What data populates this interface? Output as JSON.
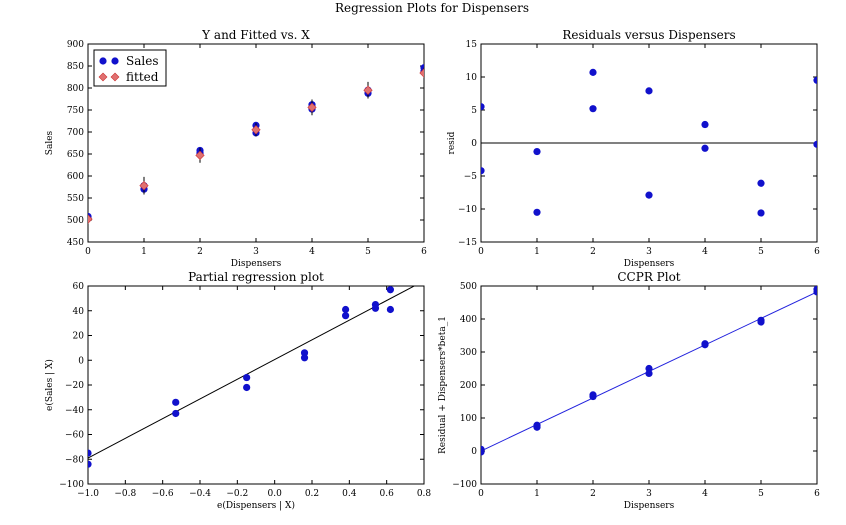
{
  "figure": {
    "suptitle": "Regression Plots for Dispensers"
  },
  "chart_data": [
    {
      "id": "yfit",
      "type": "scatter",
      "title": "Y and Fitted vs. X",
      "xlabel": "Dispensers",
      "ylabel": "Sales",
      "xlim": [
        0,
        6
      ],
      "ylim": [
        450,
        900
      ],
      "xticks": [
        "0",
        "1",
        "2",
        "3",
        "4",
        "5",
        "6"
      ],
      "yticks": [
        "450",
        "500",
        "550",
        "600",
        "650",
        "700",
        "750",
        "800",
        "850",
        "900"
      ],
      "legend": {
        "placement": "top-left",
        "entries": [
          "Sales",
          "fitted"
        ]
      },
      "colors": {
        "sales": "#1111cc",
        "fitted": "#e07070",
        "errorbar": "#000000"
      },
      "series": [
        {
          "name": "Sales",
          "marker": "circle",
          "points": [
            [
              0,
              508
            ],
            [
              0,
              504
            ],
            [
              1,
              570
            ],
            [
              1,
              578
            ],
            [
              2,
              652
            ],
            [
              2,
              658
            ],
            [
              3,
              698
            ],
            [
              3,
              715
            ],
            [
              4,
              752
            ],
            [
              4,
              762
            ],
            [
              5,
              788
            ],
            [
              5,
              795
            ],
            [
              6,
              838
            ],
            [
              6,
              846
            ]
          ]
        },
        {
          "name": "fitted",
          "marker": "diamond",
          "points": [
            [
              0,
              502
            ],
            [
              1,
              578
            ],
            [
              2,
              647
            ],
            [
              3,
              705
            ],
            [
              4,
              756
            ],
            [
              5,
              795
            ],
            [
              6,
              834
            ]
          ],
          "errorbars": [
            [
              0,
              492,
              512
            ],
            [
              1,
              558,
              598
            ],
            [
              2,
              630,
              664
            ],
            [
              3,
              690,
              720
            ],
            [
              4,
              738,
              774
            ],
            [
              5,
              776,
              814
            ],
            [
              6,
              822,
              846
            ]
          ]
        }
      ]
    },
    {
      "id": "resid",
      "type": "scatter",
      "title": "Residuals versus Dispensers",
      "xlabel": "Dispensers",
      "ylabel": "resid",
      "xlim": [
        0,
        6
      ],
      "ylim": [
        -15,
        15
      ],
      "xticks": [
        "0",
        "1",
        "2",
        "3",
        "4",
        "5",
        "6"
      ],
      "yticks": [
        "−15",
        "−10",
        "−5",
        "0",
        "5",
        "10",
        "15"
      ],
      "hline": 0,
      "colors": {
        "points": "#1111cc",
        "line": "#000000"
      },
      "series": [
        {
          "points": [
            [
              0,
              5.5
            ],
            [
              0,
              -4.2
            ],
            [
              1,
              -1.3
            ],
            [
              1,
              -10.5
            ],
            [
              2,
              10.7
            ],
            [
              2,
              5.2
            ],
            [
              3,
              7.9
            ],
            [
              3,
              -7.9
            ],
            [
              4,
              2.8
            ],
            [
              4,
              -0.8
            ],
            [
              5,
              -6.1
            ],
            [
              5,
              -10.6
            ],
            [
              6,
              9.5
            ],
            [
              6,
              -0.2
            ]
          ]
        }
      ]
    },
    {
      "id": "partial",
      "type": "scatter",
      "title": "Partial regression plot",
      "xlabel": "e(Dispensers | X)",
      "ylabel": "e(Sales | X)",
      "xlim": [
        -1.0,
        0.8
      ],
      "ylim": [
        -100,
        60
      ],
      "xticks": [
        "−1.0",
        "−0.8",
        "−0.6",
        "−0.4",
        "−0.2",
        "0.0",
        "0.2",
        "0.4",
        "0.6",
        "0.8"
      ],
      "yticks": [
        "−100",
        "−80",
        "−60",
        "−40",
        "−20",
        "0",
        "20",
        "40",
        "60"
      ],
      "fit_line": [
        [
          -1.0,
          -79
        ],
        [
          0.76,
          61
        ]
      ],
      "colors": {
        "points": "#1111cc",
        "line": "#000000"
      },
      "series": [
        {
          "points": [
            [
              -1.0,
              -75
            ],
            [
              -1.0,
              -84
            ],
            [
              -0.53,
              -34
            ],
            [
              -0.53,
              -43
            ],
            [
              -0.15,
              -14
            ],
            [
              -0.15,
              -22
            ],
            [
              0.16,
              6
            ],
            [
              0.16,
              2
            ],
            [
              0.38,
              41
            ],
            [
              0.38,
              36
            ],
            [
              0.54,
              45
            ],
            [
              0.54,
              42
            ],
            [
              0.62,
              57
            ],
            [
              0.62,
              41
            ]
          ]
        }
      ]
    },
    {
      "id": "ccpr",
      "type": "scatter",
      "title": "CCPR Plot",
      "xlabel": "Dispensers",
      "ylabel": "Residual + Dispensers*beta_1",
      "xlim": [
        0,
        6
      ],
      "ylim": [
        -100,
        500
      ],
      "xticks": [
        "0",
        "1",
        "2",
        "3",
        "4",
        "5",
        "6"
      ],
      "yticks": [
        "−100",
        "0",
        "100",
        "200",
        "300",
        "400",
        "500"
      ],
      "fit_line": [
        [
          0,
          0
        ],
        [
          6,
          482
        ]
      ],
      "colors": {
        "points": "#1111cc",
        "line": "#2222dd"
      },
      "series": [
        {
          "points": [
            [
              0,
              5
            ],
            [
              0,
              -3
            ],
            [
              1,
              78
            ],
            [
              1,
              72
            ],
            [
              2,
              170
            ],
            [
              2,
              165
            ],
            [
              3,
              250
            ],
            [
              3,
              235
            ],
            [
              4,
              325
            ],
            [
              4,
              322
            ],
            [
              5,
              396
            ],
            [
              5,
              391
            ],
            [
              6,
              490
            ],
            [
              6,
              482
            ]
          ]
        }
      ]
    }
  ]
}
